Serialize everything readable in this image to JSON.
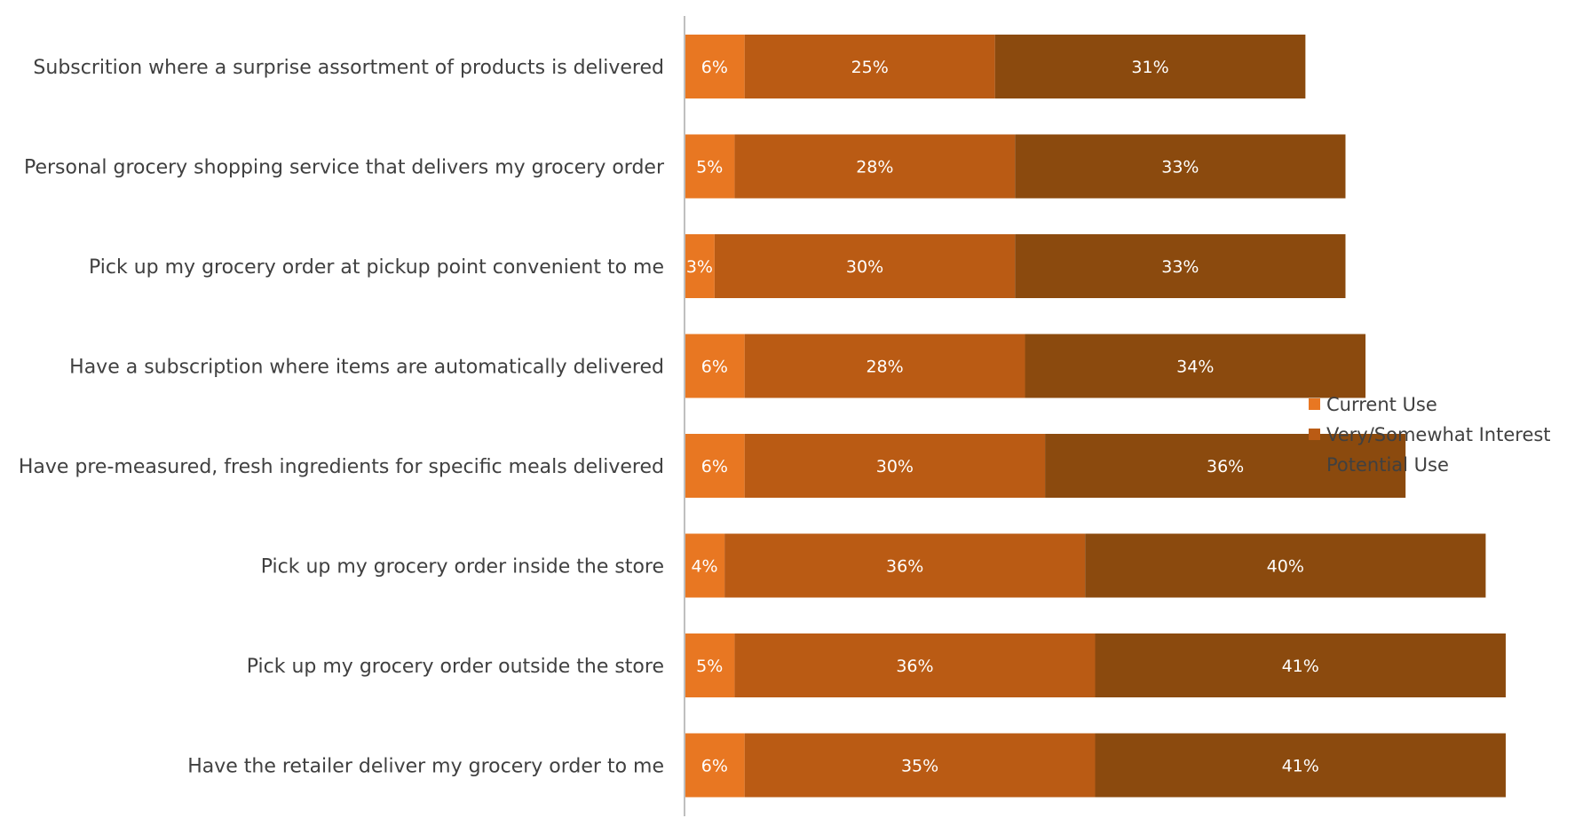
{
  "chart_data": {
    "type": "bar",
    "orientation": "horizontal",
    "stacked": true,
    "categories": [
      "Subscrition where a surprise assortment of products is delivered",
      "Personal grocery shopping service that delivers my grocery order",
      "Pick up my grocery order at pickup point convenient to me",
      "Have a subscription where items are automatically delivered",
      "Have pre-measured, fresh ingredients for specific meals delivered",
      "Pick up my grocery order inside the store",
      "Pick up my grocery order outside the store",
      "Have the retailer deliver my grocery order to me"
    ],
    "series": [
      {
        "name": "Current Use",
        "color": "#E87722",
        "values": [
          6,
          5,
          3,
          6,
          6,
          4,
          5,
          6
        ]
      },
      {
        "name": "Very/Somewhat Interest",
        "color": "#BA5B14",
        "values": [
          25,
          28,
          30,
          28,
          30,
          36,
          36,
          35
        ]
      },
      {
        "name": "Potential Use",
        "color": "#8B4A0E",
        "values": [
          31,
          33,
          33,
          34,
          36,
          40,
          41,
          41
        ]
      }
    ],
    "value_suffix": "%",
    "xlim": [
      0,
      100
    ],
    "grid": false,
    "legend_position": "right"
  }
}
